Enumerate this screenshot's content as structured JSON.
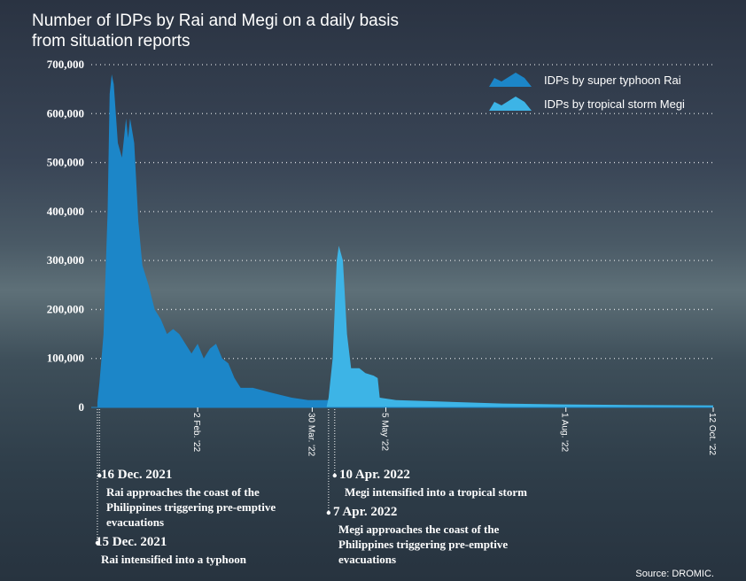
{
  "chart_data": {
    "type": "area",
    "title": "Number of IDPs by Rai and Megi on a daily basis from situation reports",
    "source": "Source: DROMIC.",
    "xlim": [
      "2021-12-12",
      "2022-10-12"
    ],
    "xticks": [
      {
        "value": "2022-02-02",
        "label": "2 Feb. '22"
      },
      {
        "value": "2022-03-30",
        "label": "30 Mar. '22"
      },
      {
        "value": "2022-05-05",
        "label": "5 May '22"
      },
      {
        "value": "2022-08-01",
        "label": "1 Aug. '22"
      },
      {
        "value": "2022-10-12",
        "label": "12 Oct. '22"
      }
    ],
    "ylim": [
      0,
      700000
    ],
    "yticks": [
      {
        "value": 0,
        "label": "0"
      },
      {
        "value": 100000,
        "label": "100,000"
      },
      {
        "value": 200000,
        "label": "200,000"
      },
      {
        "value": 300000,
        "label": "300,000"
      },
      {
        "value": 400000,
        "label": "400,000"
      },
      {
        "value": 500000,
        "label": "500,000"
      },
      {
        "value": 600000,
        "label": "600,000"
      },
      {
        "value": 700000,
        "label": "700,000"
      }
    ],
    "grid": true,
    "legend": "top-right",
    "series": [
      {
        "name": "IDPs by super typhoon Rai",
        "color": "#1c86c8",
        "x": [
          "2021-12-15",
          "2021-12-16",
          "2021-12-18",
          "2021-12-20",
          "2021-12-21",
          "2021-12-22",
          "2021-12-23",
          "2021-12-25",
          "2021-12-27",
          "2021-12-29",
          "2021-12-30",
          "2021-12-31",
          "2022-01-02",
          "2022-01-04",
          "2022-01-06",
          "2022-01-09",
          "2022-01-12",
          "2022-01-15",
          "2022-01-18",
          "2022-01-21",
          "2022-01-24",
          "2022-01-27",
          "2022-01-30",
          "2022-02-02",
          "2022-02-05",
          "2022-02-08",
          "2022-02-11",
          "2022-02-14",
          "2022-02-17",
          "2022-02-20",
          "2022-02-23",
          "2022-03-01",
          "2022-03-10",
          "2022-03-20",
          "2022-03-28",
          "2022-04-05",
          "2022-04-20",
          "2022-05-01",
          "2022-06-01",
          "2022-07-01",
          "2022-08-01",
          "2022-09-01",
          "2022-10-12"
        ],
        "values": [
          10000,
          50000,
          150000,
          400000,
          640000,
          680000,
          660000,
          540000,
          510000,
          590000,
          550000,
          590000,
          540000,
          380000,
          290000,
          250000,
          200000,
          180000,
          150000,
          160000,
          150000,
          130000,
          110000,
          130000,
          100000,
          120000,
          130000,
          100000,
          90000,
          60000,
          40000,
          40000,
          30000,
          20000,
          15000,
          15000,
          15000,
          10000,
          8000,
          5000,
          3000,
          2000,
          1000
        ]
      },
      {
        "name": "IDPs by tropical storm Megi",
        "color": "#3db4e6",
        "x": [
          "2022-04-06",
          "2022-04-07",
          "2022-04-09",
          "2022-04-11",
          "2022-04-12",
          "2022-04-14",
          "2022-04-16",
          "2022-04-18",
          "2022-04-22",
          "2022-04-25",
          "2022-04-29",
          "2022-05-01",
          "2022-05-02",
          "2022-05-10",
          "2022-06-01",
          "2022-07-01",
          "2022-08-01",
          "2022-09-01",
          "2022-10-12"
        ],
        "values": [
          0,
          20000,
          100000,
          300000,
          330000,
          300000,
          150000,
          80000,
          80000,
          70000,
          65000,
          60000,
          20000,
          15000,
          12000,
          8000,
          6000,
          5000,
          4000
        ]
      }
    ],
    "annotations": [
      {
        "x": "2021-12-16",
        "heading": "16 Dec. 2021",
        "text": "Rai approaches the coast of the Philippines triggering pre-emptive evacuations"
      },
      {
        "x": "2021-12-15",
        "heading": "15 Dec. 2021",
        "text": "Rai intensified into a typhoon"
      },
      {
        "x": "2022-04-10",
        "heading": "10 Apr. 2022",
        "text": "Megi intensified into a tropical storm"
      },
      {
        "x": "2022-04-07",
        "heading": "7 Apr. 2022",
        "text": "Megi approaches the coast of the Philippines triggering pre-emptive evacuations"
      }
    ]
  }
}
